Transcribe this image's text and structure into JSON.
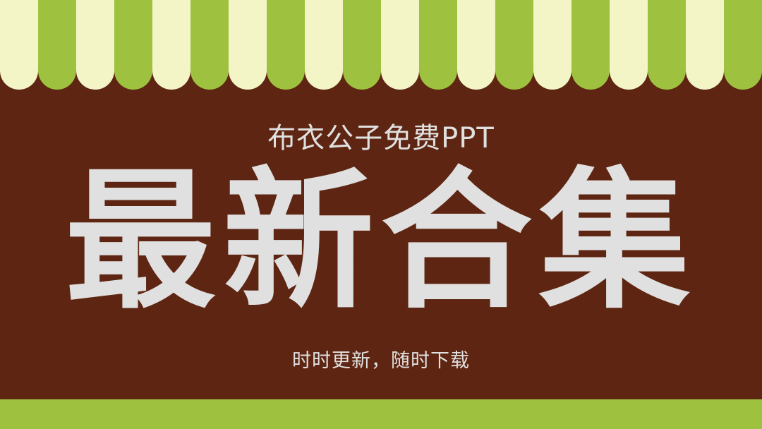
{
  "slide": {
    "subtitle": "布衣公子免费PPT",
    "title": "最新合集",
    "tagline": "时时更新，随时下载"
  },
  "colors": {
    "background": "#5e2612",
    "stripe_green": "#9ec23f",
    "stripe_cream": "#f3f5c6",
    "text": "#e0e0e0",
    "bottom_band": "#9ec23f"
  }
}
